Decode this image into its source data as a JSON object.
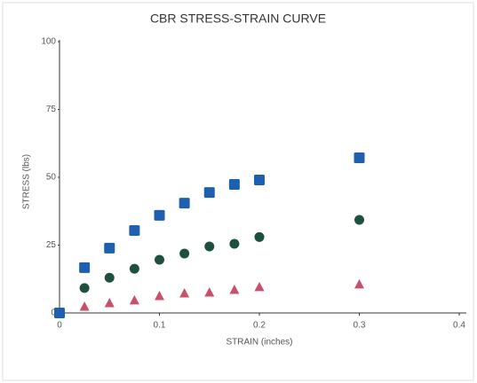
{
  "chart_data": {
    "type": "scatter",
    "title": "CBR STRESS-STRAIN CURVE",
    "xlabel": "STRAIN (inches)",
    "ylabel": "STRESS (lbs)",
    "xlim": [
      0,
      0.4
    ],
    "xticks": [
      0,
      0.1,
      0.2,
      0.3,
      0.4
    ],
    "ylim": [
      0,
      100
    ],
    "yticks": [
      0,
      25,
      50,
      75,
      100
    ],
    "series": [
      {
        "marker": "square",
        "color": "#1f5fb0",
        "x": [
          0,
          0.025,
          0.05,
          0.075,
          0.1,
          0.125,
          0.15,
          0.175,
          0.2,
          0.3
        ],
        "values": [
          0,
          16.7,
          23.9,
          30.4,
          36,
          40.5,
          44.4,
          47.4,
          49,
          57.2
        ]
      },
      {
        "marker": "circle",
        "color": "#1e5040",
        "x": [
          0.025,
          0.05,
          0.075,
          0.1,
          0.125,
          0.15,
          0.175,
          0.2,
          0.3
        ],
        "values": [
          9.2,
          13,
          16.3,
          19.6,
          21.9,
          24.5,
          25.5,
          28,
          34.3
        ]
      },
      {
        "marker": "triangle",
        "color": "#c8506a",
        "x": [
          0.025,
          0.05,
          0.075,
          0.1,
          0.125,
          0.15,
          0.175,
          0.2,
          0.3
        ],
        "values": [
          2.3,
          3.6,
          4.6,
          6.2,
          7.2,
          7.5,
          8.5,
          9.5,
          10.5
        ]
      }
    ]
  }
}
